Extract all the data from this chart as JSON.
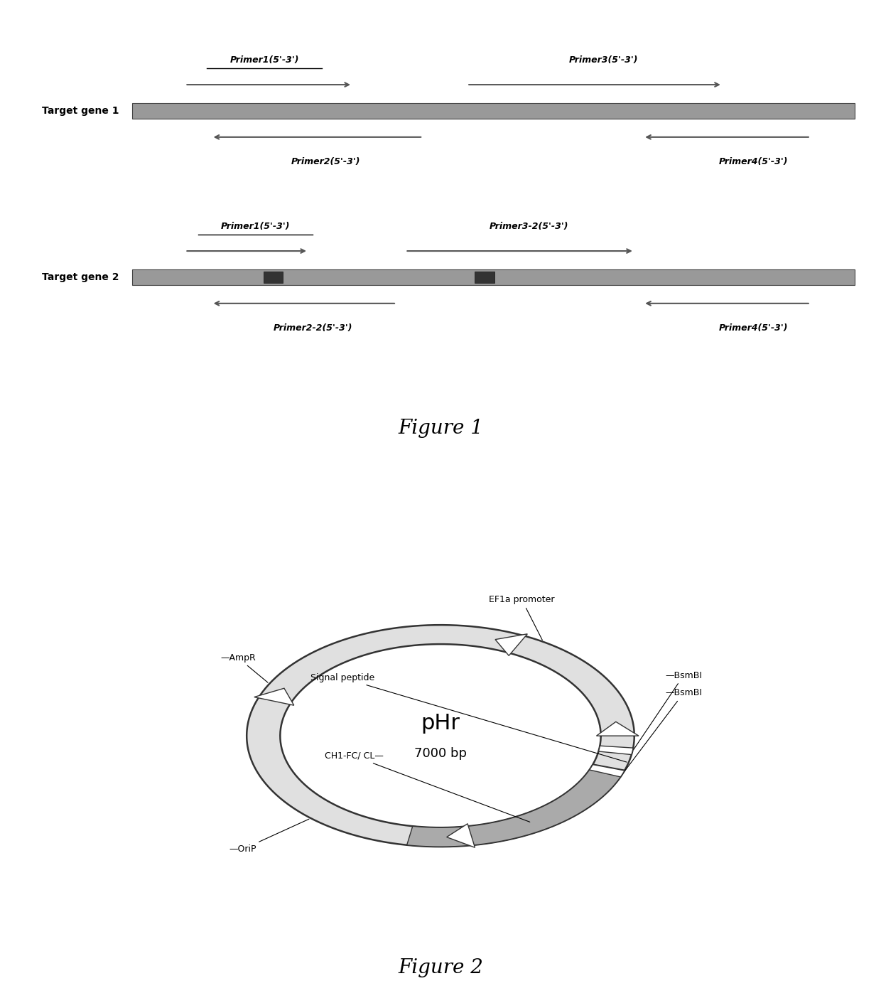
{
  "fig_width": 12.4,
  "fig_height": 14.18,
  "bg_color": "#ffffff",
  "fig1_title": "Figure 1",
  "fig2_title": "Figure 2",
  "gene1_label": "Target gene 1",
  "gene2_label": "Target gene 2",
  "primer1_label": "Primer1(5'-3')",
  "primer2_label": "Primer2(5'-3')",
  "primer3_label": "Primer3(5'-3')",
  "primer4_label": "Primer4(5'-3')",
  "primer12_label": "Primer1(5'-3')",
  "primer22_label": "Primer2-2(5'-3')",
  "primer32_label": "Primer3-2(5'-3')",
  "primer42_label": "Primer4(5'-3')",
  "plasmid_name": "pHr",
  "plasmid_size": "7000 bp",
  "gene_bar_color": "#999999",
  "gene_bar_edge_color": "#555555",
  "primer_arrow_color": "#555555",
  "dark_square_color": "#333333"
}
